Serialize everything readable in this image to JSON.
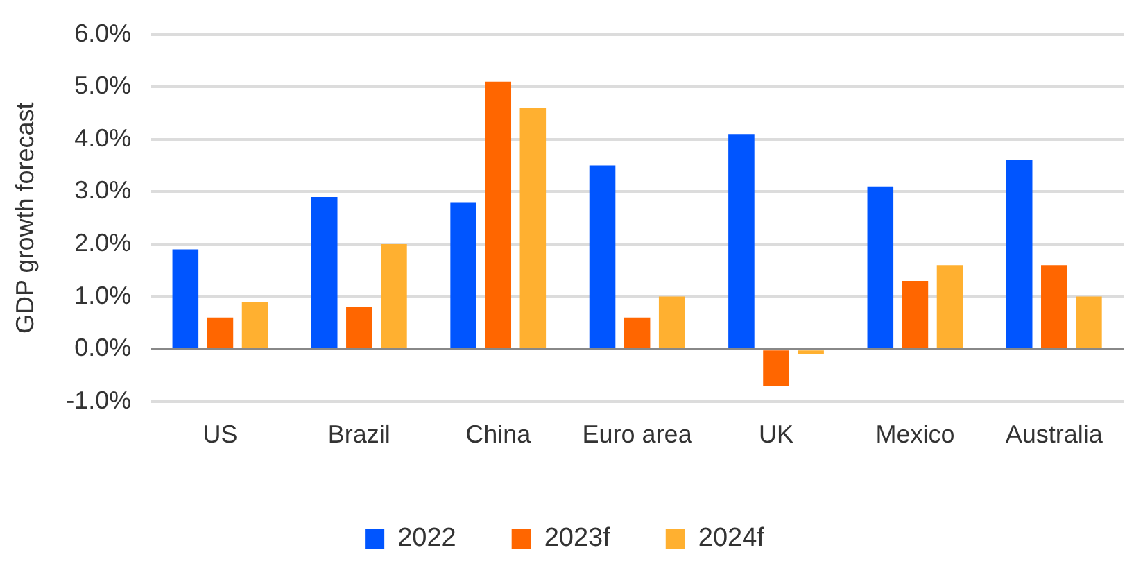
{
  "chart_data": {
    "type": "bar",
    "ylabel": "GDP growth forecast",
    "categories": [
      "US",
      "Brazil",
      "China",
      "Euro area",
      "UK",
      "Mexico",
      "Australia"
    ],
    "series": [
      {
        "name": "2022",
        "color": "#0055ff",
        "values": [
          1.9,
          2.9,
          2.8,
          3.5,
          4.1,
          3.1,
          3.6
        ]
      },
      {
        "name": "2023f",
        "color": "#ff6600",
        "values": [
          0.6,
          0.8,
          5.1,
          0.6,
          -0.7,
          1.3,
          1.6
        ]
      },
      {
        "name": "2024f",
        "color": "#ffb030",
        "values": [
          0.9,
          2.0,
          4.6,
          1.0,
          -0.1,
          1.6,
          1.0
        ]
      }
    ],
    "ylim": [
      -1.0,
      6.0
    ],
    "yticks": [
      {
        "value": -1,
        "label": "-1.0%"
      },
      {
        "value": 0,
        "label": "0.0%"
      },
      {
        "value": 1,
        "label": "1.0%"
      },
      {
        "value": 2,
        "label": "2.0%"
      },
      {
        "value": 3,
        "label": "3.0%"
      },
      {
        "value": 4,
        "label": "4.0%"
      },
      {
        "value": 5,
        "label": "5.0%"
      },
      {
        "value": 6,
        "label": "6.0%"
      }
    ],
    "grid": "y",
    "legend": "bottom"
  }
}
